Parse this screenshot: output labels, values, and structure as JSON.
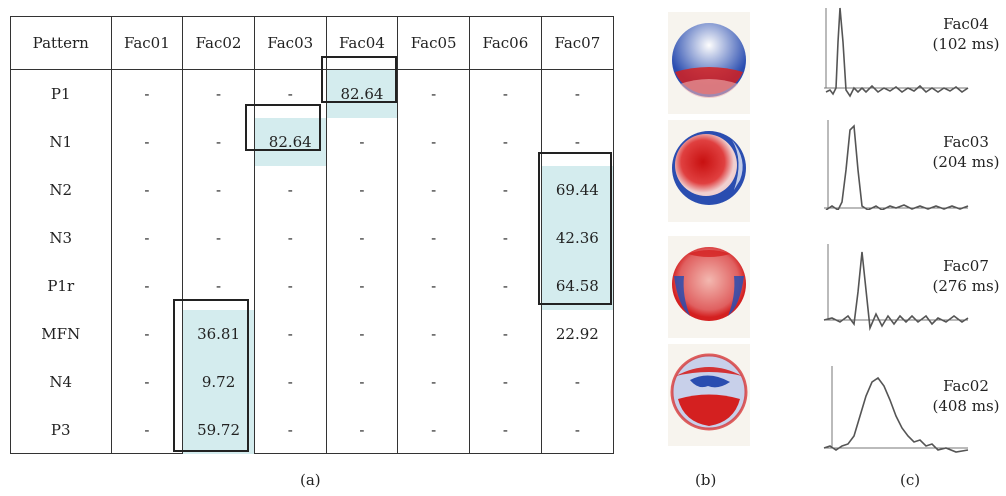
{
  "table": {
    "headers": [
      "Pattern",
      "Fac01",
      "Fac02",
      "Fac03",
      "Fac04",
      "Fac05",
      "Fac06",
      "Fac07"
    ],
    "rows": [
      [
        "P1",
        "-",
        "-",
        "-",
        "82.64",
        "-",
        "-",
        "-"
      ],
      [
        "N1",
        "-",
        "-",
        "82.64",
        "-",
        "-",
        "-",
        "-"
      ],
      [
        "N2",
        "-",
        "-",
        "-",
        "-",
        "-",
        "-",
        "69.44"
      ],
      [
        "N3",
        "-",
        "-",
        "-",
        "-",
        "-",
        "-",
        "42.36"
      ],
      [
        "P1r",
        "-",
        "-",
        "-",
        "-",
        "-",
        "-",
        "64.58"
      ],
      [
        "MFN",
        "-",
        "36.81",
        "-",
        "-",
        "-",
        "-",
        "22.92"
      ],
      [
        "N4",
        "-",
        "9.72",
        "-",
        "-",
        "-",
        "-",
        "-"
      ],
      [
        "P3",
        "-",
        "59.72",
        "-",
        "-",
        "-",
        "-",
        "-"
      ]
    ],
    "highlight_color": "#d4ecee"
  },
  "captions": {
    "a": "(a)",
    "b": "(b)",
    "c": "(c)"
  },
  "factors": [
    {
      "name": "Fac04",
      "latency": "(102 ms)"
    },
    {
      "name": "Fac03",
      "latency": "(204 ms)"
    },
    {
      "name": "Fac07",
      "latency": "(276 ms)"
    },
    {
      "name": "Fac02",
      "latency": "(408 ms)"
    }
  ],
  "colors": {
    "positive": "#d42020",
    "negative": "#2a4db0",
    "waveform": "#555555"
  }
}
